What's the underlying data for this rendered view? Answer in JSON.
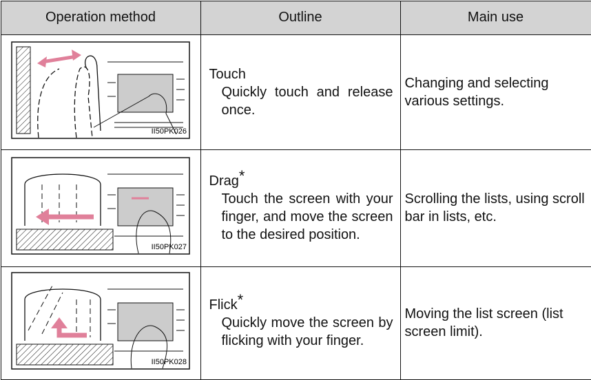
{
  "table": {
    "header": [
      "Operation method",
      "Outline",
      "Main use"
    ],
    "rows": [
      {
        "image_code": "II50PK026",
        "outline_title": "Touch",
        "outline_text": "Quickly touch and release once.",
        "main_use": "Changing and selecting various settings."
      },
      {
        "image_code": "II50PK027",
        "outline_title": "Drag",
        "note_mark": "*",
        "outline_text": "Touch the screen with your finger, and move the screen to the desired position.",
        "main_use": "Scrolling the lists, using scroll bar in lists, etc."
      },
      {
        "image_code": "II50PK028",
        "outline_title": "Flick",
        "note_mark": "*",
        "outline_text": "Quickly move the screen by flicking with your finger.",
        "main_use": "Moving the list screen (list screen limit)."
      }
    ]
  }
}
